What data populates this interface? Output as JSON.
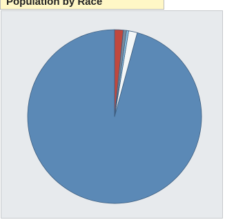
{
  "chart_data": {
    "type": "pie",
    "title": "Population by Race",
    "start_angle_deg": 0,
    "direction": "counterclockwise",
    "slices": [
      {
        "name": "",
        "value": 95.8,
        "color": "#5b89b6"
      },
      {
        "name": "",
        "value": 1.6,
        "color": "#f2f6f7"
      },
      {
        "name": "",
        "value": 0.4,
        "color": "#8fc6e8"
      },
      {
        "name": "",
        "value": 0.6,
        "color": "#7a8a9b"
      },
      {
        "name": "",
        "value": 1.6,
        "color": "#c0483e"
      }
    ]
  },
  "colors": {
    "frame_background": "#e7eaed",
    "title_background": "#fff7c6",
    "slice_stroke": "#3f5f80"
  }
}
